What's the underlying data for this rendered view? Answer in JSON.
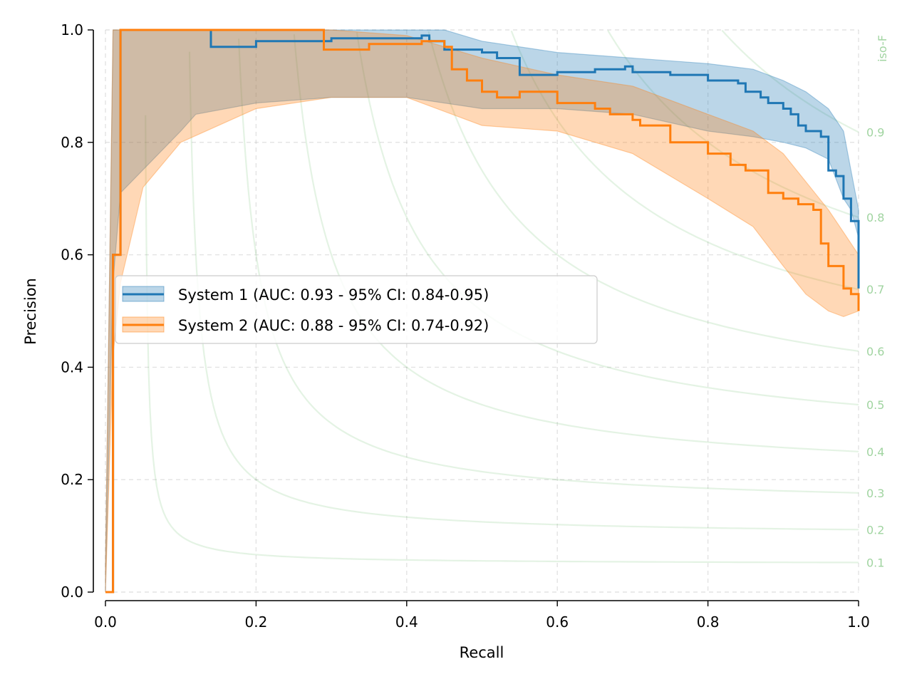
{
  "chart_data": {
    "type": "line",
    "xlabel": "Recall",
    "ylabel": "Precision",
    "xlim": [
      0.0,
      1.0
    ],
    "ylim": [
      0.0,
      1.0
    ],
    "x_ticks": [
      "0.0",
      "0.2",
      "0.4",
      "0.6",
      "0.8",
      "1.0"
    ],
    "y_ticks": [
      "0.0",
      "0.2",
      "0.4",
      "0.6",
      "0.8",
      "1.0"
    ],
    "grid": true,
    "legend_position": "center-left",
    "iso_f": {
      "label": "iso-F",
      "color": "#2ca02c",
      "values": [
        0.1,
        0.2,
        0.3,
        0.4,
        0.5,
        0.6,
        0.7,
        0.8,
        0.9
      ],
      "tick_labels": [
        "0.1",
        "0.2",
        "0.3",
        "0.4",
        "0.5",
        "0.6",
        "0.7",
        "0.8",
        "0.9"
      ]
    },
    "series": [
      {
        "name": "System 1 (AUC: 0.93 - 95% CI: 0.84-0.95)",
        "color": "#1f77b4",
        "x": [
          0.0,
          0.01,
          0.02,
          0.14,
          0.14,
          0.2,
          0.3,
          0.42,
          0.43,
          0.45,
          0.47,
          0.5,
          0.52,
          0.55,
          0.6,
          0.65,
          0.69,
          0.7,
          0.75,
          0.8,
          0.84,
          0.85,
          0.87,
          0.88,
          0.9,
          0.91,
          0.92,
          0.93,
          0.95,
          0.96,
          0.97,
          0.98,
          0.99,
          1.0,
          1.0
        ],
        "y": [
          0.0,
          0.6,
          1.0,
          1.0,
          0.97,
          0.98,
          0.985,
          0.99,
          0.98,
          0.965,
          0.965,
          0.96,
          0.95,
          0.92,
          0.925,
          0.93,
          0.935,
          0.925,
          0.92,
          0.91,
          0.905,
          0.89,
          0.88,
          0.87,
          0.86,
          0.85,
          0.83,
          0.82,
          0.81,
          0.75,
          0.74,
          0.7,
          0.66,
          0.64,
          0.54
        ],
        "ci_lower_x": [
          0.0,
          0.01,
          0.02,
          0.1,
          0.12,
          0.2,
          0.3,
          0.4,
          0.45,
          0.5,
          0.6,
          0.7,
          0.8,
          0.86,
          0.9,
          0.93,
          0.96,
          0.98,
          0.99,
          1.0
        ],
        "ci_lower": [
          0.0,
          0.55,
          0.71,
          0.82,
          0.85,
          0.87,
          0.88,
          0.88,
          0.87,
          0.86,
          0.86,
          0.85,
          0.82,
          0.81,
          0.8,
          0.79,
          0.77,
          0.7,
          0.68,
          0.63
        ],
        "ci_upper": [
          0.05,
          1.0,
          1.0,
          1.0,
          1.0,
          1.0,
          1.0,
          1.0,
          1.0,
          0.98,
          0.96,
          0.95,
          0.94,
          0.93,
          0.91,
          0.89,
          0.86,
          0.82,
          0.75,
          0.68
        ]
      },
      {
        "name": "System 2 (AUC: 0.88 - 95% CI: 0.74-0.92)",
        "color": "#ff7f0e",
        "x": [
          0.0,
          0.01,
          0.02,
          0.29,
          0.29,
          0.35,
          0.42,
          0.45,
          0.46,
          0.48,
          0.5,
          0.52,
          0.55,
          0.6,
          0.65,
          0.67,
          0.7,
          0.71,
          0.75,
          0.8,
          0.83,
          0.85,
          0.88,
          0.9,
          0.92,
          0.94,
          0.95,
          0.96,
          0.98,
          0.99,
          1.0
        ],
        "y": [
          0.0,
          0.6,
          1.0,
          1.0,
          0.965,
          0.975,
          0.98,
          0.97,
          0.93,
          0.91,
          0.89,
          0.88,
          0.89,
          0.87,
          0.86,
          0.85,
          0.84,
          0.83,
          0.8,
          0.78,
          0.76,
          0.75,
          0.71,
          0.7,
          0.69,
          0.68,
          0.62,
          0.58,
          0.54,
          0.53,
          0.5
        ],
        "ci_lower_x": [
          0.0,
          0.01,
          0.02,
          0.05,
          0.1,
          0.2,
          0.3,
          0.4,
          0.5,
          0.6,
          0.7,
          0.8,
          0.86,
          0.9,
          0.93,
          0.96,
          0.98,
          1.0
        ],
        "ci_lower": [
          0.0,
          0.42,
          0.55,
          0.72,
          0.8,
          0.86,
          0.88,
          0.88,
          0.83,
          0.82,
          0.78,
          0.7,
          0.65,
          0.58,
          0.53,
          0.5,
          0.49,
          0.5
        ],
        "ci_upper": [
          0.05,
          1.0,
          1.0,
          1.0,
          1.0,
          1.0,
          1.0,
          0.99,
          0.95,
          0.92,
          0.9,
          0.85,
          0.82,
          0.78,
          0.73,
          0.68,
          0.64,
          0.6
        ]
      }
    ]
  }
}
